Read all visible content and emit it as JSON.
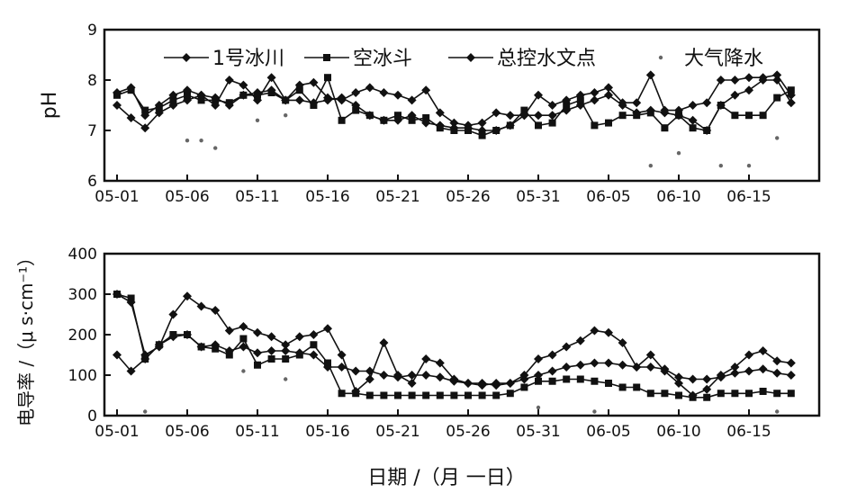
{
  "chart_data": [
    {
      "type": "line",
      "ylabel": "pH",
      "ylim": [
        6,
        9
      ],
      "yticks": [
        6,
        7,
        8,
        9
      ],
      "xticks": [
        "05-01",
        "05-06",
        "05-11",
        "05-16",
        "05-21",
        "05-26",
        "05-31",
        "06-05",
        "06-10",
        "06-15"
      ],
      "legend_position": "top",
      "series": [
        {
          "name": "1号冰川",
          "marker": "diamond",
          "values": [
            7.5,
            7.25,
            7.05,
            7.35,
            7.5,
            7.6,
            7.7,
            7.65,
            7.5,
            7.7,
            7.75,
            7.8,
            7.6,
            7.6,
            7.55,
            7.6,
            7.65,
            7.5,
            7.3,
            7.2,
            7.2,
            7.3,
            7.15,
            7.1,
            7.05,
            7.05,
            7.0,
            7.0,
            7.1,
            7.3,
            7.3,
            7.3,
            7.4,
            7.5,
            7.6,
            7.7,
            7.5,
            7.35,
            7.4,
            7.35,
            7.3,
            7.2,
            7.0,
            7.5,
            7.7,
            7.8,
            8.0,
            8.0,
            7.55
          ]
        },
        {
          "name": "空冰斗",
          "marker": "square",
          "values": [
            7.7,
            7.8,
            7.4,
            7.45,
            7.6,
            7.7,
            7.6,
            7.6,
            7.55,
            7.7,
            7.7,
            7.75,
            7.6,
            7.8,
            7.5,
            8.05,
            7.2,
            7.4,
            7.3,
            7.2,
            7.3,
            7.2,
            7.25,
            7.05,
            7.0,
            7.0,
            6.9,
            7.0,
            7.1,
            7.4,
            7.1,
            7.15,
            7.5,
            7.6,
            7.1,
            7.15,
            7.3,
            7.3,
            7.35,
            7.05,
            7.3,
            7.05,
            7.0,
            7.5,
            7.3,
            7.3,
            7.3,
            7.65,
            7.8
          ]
        },
        {
          "name": "总控水文点",
          "marker": "diamond",
          "values": [
            7.75,
            7.85,
            7.3,
            7.5,
            7.7,
            7.8,
            7.7,
            7.5,
            8.0,
            7.9,
            7.6,
            8.05,
            7.6,
            7.9,
            7.95,
            7.65,
            7.6,
            7.75,
            7.85,
            7.75,
            7.7,
            7.6,
            7.8,
            7.35,
            7.15,
            7.1,
            7.15,
            7.35,
            7.3,
            7.3,
            7.7,
            7.5,
            7.6,
            7.7,
            7.75,
            7.85,
            7.55,
            7.55,
            8.1,
            7.4,
            7.4,
            7.5,
            7.55,
            8.0,
            8.0,
            8.05,
            8.05,
            8.1,
            7.7
          ]
        },
        {
          "name": "大气降水",
          "marker": "dot",
          "values": [
            null,
            null,
            null,
            null,
            null,
            6.8,
            6.8,
            6.65,
            null,
            null,
            7.2,
            null,
            7.3,
            null,
            null,
            null,
            null,
            null,
            null,
            null,
            null,
            null,
            null,
            null,
            null,
            null,
            null,
            null,
            null,
            null,
            null,
            null,
            null,
            null,
            null,
            null,
            null,
            null,
            6.3,
            null,
            6.55,
            null,
            null,
            6.3,
            null,
            6.3,
            null,
            6.85,
            null
          ]
        }
      ]
    },
    {
      "type": "line",
      "xlabel": "日期 /（月 一日）",
      "ylabel": "电导率 /（μ s·cm⁻¹）",
      "ylim": [
        0,
        400
      ],
      "yticks": [
        0,
        100,
        200,
        300,
        400
      ],
      "xticks": [
        "05-01",
        "05-06",
        "05-11",
        "05-16",
        "05-21",
        "05-26",
        "05-31",
        "06-05",
        "06-10",
        "06-15"
      ],
      "series": [
        {
          "name": "1号冰川",
          "marker": "diamond",
          "values": [
            150,
            110,
            140,
            175,
            195,
            200,
            170,
            175,
            160,
            170,
            155,
            160,
            160,
            155,
            150,
            120,
            120,
            110,
            110,
            100,
            95,
            100,
            100,
            95,
            85,
            80,
            80,
            75,
            80,
            90,
            100,
            110,
            120,
            125,
            130,
            130,
            125,
            120,
            120,
            115,
            95,
            90,
            90,
            95,
            105,
            110,
            115,
            105,
            100
          ]
        },
        {
          "name": "空冰斗",
          "marker": "square",
          "values": [
            300,
            290,
            140,
            175,
            200,
            200,
            170,
            165,
            150,
            190,
            125,
            140,
            140,
            150,
            175,
            130,
            55,
            55,
            50,
            50,
            50,
            50,
            50,
            50,
            50,
            50,
            50,
            50,
            55,
            70,
            85,
            85,
            90,
            90,
            85,
            80,
            70,
            70,
            55,
            55,
            50,
            45,
            45,
            55,
            55,
            55,
            60,
            55,
            55
          ]
        },
        {
          "name": "总控水文点",
          "marker": "diamond",
          "values": [
            300,
            280,
            150,
            170,
            250,
            295,
            270,
            260,
            210,
            220,
            205,
            195,
            175,
            195,
            200,
            215,
            150,
            60,
            90,
            180,
            100,
            80,
            140,
            130,
            90,
            80,
            75,
            80,
            80,
            100,
            140,
            150,
            170,
            185,
            210,
            205,
            180,
            120,
            150,
            110,
            80,
            50,
            65,
            100,
            120,
            150,
            160,
            135,
            130
          ]
        },
        {
          "name": "大气降水",
          "marker": "dot",
          "values": [
            null,
            null,
            10,
            null,
            null,
            null,
            null,
            null,
            null,
            110,
            null,
            null,
            90,
            null,
            null,
            null,
            null,
            null,
            null,
            null,
            null,
            null,
            null,
            null,
            null,
            null,
            null,
            null,
            null,
            null,
            20,
            null,
            null,
            null,
            10,
            null,
            null,
            null,
            null,
            null,
            null,
            null,
            null,
            null,
            null,
            null,
            null,
            10,
            null
          ]
        }
      ]
    }
  ]
}
